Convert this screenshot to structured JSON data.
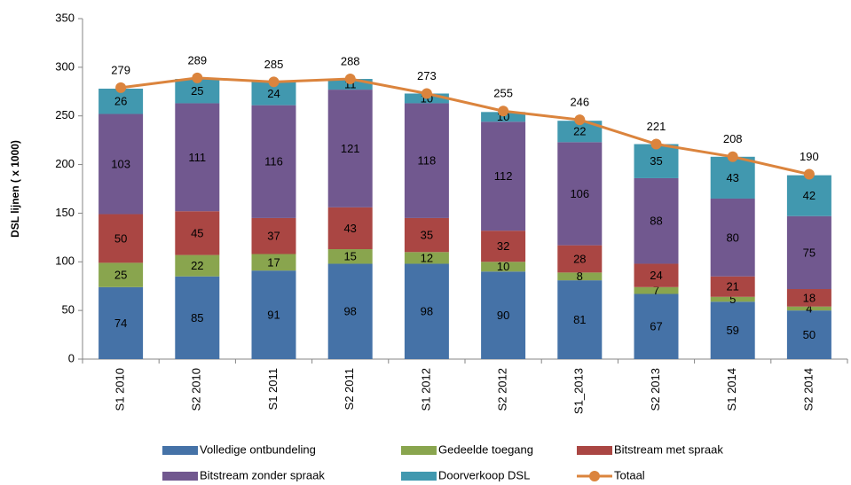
{
  "chart_data": {
    "type": "bar",
    "stacked": true,
    "y_label": "DSL lijnen ( x 1000)",
    "categories": [
      "S1 2010",
      "S2 2010",
      "S1 2011",
      "S2 2011",
      "S1 2012",
      "S2 2012",
      "S1_2013",
      "S2 2013",
      "S1 2014",
      "S2 2014"
    ],
    "series": [
      {
        "name": "Volledige ontbundeling",
        "color": "#4572a7",
        "values": [
          74,
          85,
          91,
          98,
          98,
          90,
          81,
          67,
          59,
          50
        ]
      },
      {
        "name": "Gedeelde toegang",
        "color": "#89a54e",
        "values": [
          25,
          22,
          17,
          15,
          12,
          10,
          8,
          7,
          5,
          4
        ]
      },
      {
        "name": "Bitstream met spraak",
        "color": "#aa4643",
        "values": [
          50,
          45,
          37,
          43,
          35,
          32,
          28,
          24,
          21,
          18
        ]
      },
      {
        "name": "Bitstream zonder spraak",
        "color": "#71588f",
        "values": [
          103,
          111,
          116,
          121,
          118,
          112,
          106,
          88,
          80,
          75
        ]
      },
      {
        "name": "Doorverkoop DSL",
        "color": "#4198af",
        "values": [
          26,
          25,
          24,
          11,
          10,
          10,
          22,
          35,
          43,
          42
        ]
      },
      {
        "name": "Totaal",
        "color": "#db843d",
        "type": "line",
        "values": [
          279,
          289,
          285,
          288,
          273,
          255,
          246,
          221,
          208,
          190
        ]
      }
    ],
    "ylim": [
      0,
      350
    ],
    "yticks": [
      0,
      50,
      100,
      150,
      200,
      250,
      300,
      350
    ],
    "grid": false,
    "legend": "bottom"
  }
}
